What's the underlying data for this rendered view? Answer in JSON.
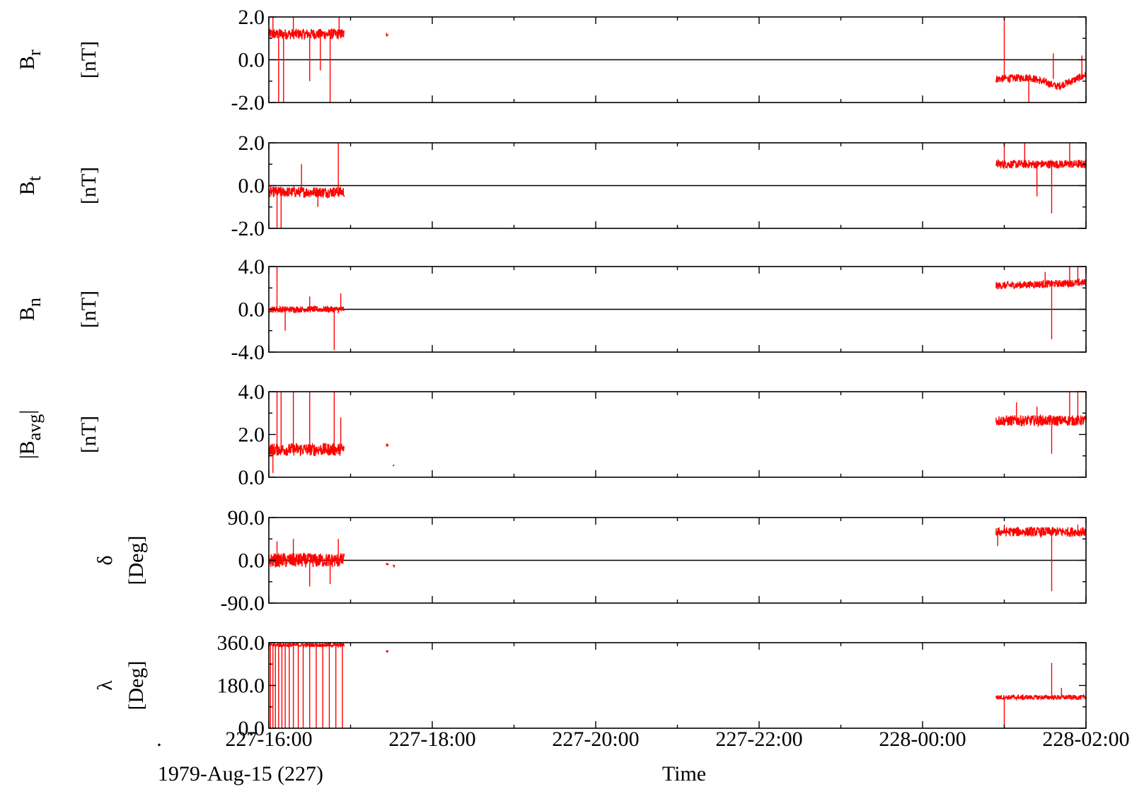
{
  "chart_data": {
    "type": "line",
    "date_label": "1979-Aug-15 (227)",
    "dot_label": ".",
    "xlabel": "Time",
    "x_tick_labels": [
      "227-16:00",
      "227-18:00",
      "227-20:00",
      "227-22:00",
      "228-00:00",
      "228-02:00"
    ],
    "x_range_hours": [
      0,
      10
    ],
    "colors": {
      "trace": "#ff0000",
      "axes": "#000000",
      "background": "#ffffff"
    },
    "panels": [
      {
        "id": "br",
        "ylabel_symbol": "B",
        "ylabel_sub": "r",
        "unit": "[nT]",
        "ylim": [
          -2,
          2
        ],
        "y_ticks": [
          -2,
          0,
          2
        ],
        "y_tick_labels": [
          "-2.0",
          "0.0",
          "2.0"
        ],
        "zero_line": true,
        "segments": [
          {
            "start": 0.0,
            "end": 0.92,
            "base": 1.2,
            "noise": 0.25,
            "spikes": [
              [
                0.05,
                2.0
              ],
              [
                0.12,
                -2.0
              ],
              [
                0.18,
                -2.0
              ],
              [
                0.3,
                2.0
              ],
              [
                0.5,
                -1.0
              ],
              [
                0.63,
                -0.5
              ],
              [
                0.75,
                -2.0
              ],
              [
                0.86,
                2.0
              ]
            ]
          },
          {
            "start": 1.44,
            "end": 1.46,
            "base": 1.2,
            "noise": 0.1,
            "spikes": []
          },
          {
            "start": 8.9,
            "end": 10.0,
            "base": -0.9,
            "base_end": -0.7,
            "dip": [
              9.65,
              -1.25
            ],
            "noise": 0.18,
            "spikes": [
              [
                9.0,
                2.0
              ],
              [
                9.6,
                0.3
              ],
              [
                9.95,
                0.2
              ],
              [
                9.3,
                -2.0
              ]
            ]
          }
        ]
      },
      {
        "id": "bt",
        "ylabel_symbol": "B",
        "ylabel_sub": "t",
        "unit": "[nT]",
        "ylim": [
          -2,
          2
        ],
        "y_ticks": [
          -2,
          0,
          2
        ],
        "y_tick_labels": [
          "-2.0",
          "0.0",
          "2.0"
        ],
        "zero_line": true,
        "segments": [
          {
            "start": 0.0,
            "end": 0.92,
            "base": -0.3,
            "noise": 0.25,
            "spikes": [
              [
                0.1,
                -2.0
              ],
              [
                0.15,
                -2.0
              ],
              [
                0.4,
                1.0
              ],
              [
                0.85,
                2.0
              ],
              [
                0.6,
                -1.0
              ]
            ]
          },
          {
            "start": 8.9,
            "end": 10.0,
            "base": 1.0,
            "noise": 0.2,
            "spikes": [
              [
                9.0,
                2.0
              ],
              [
                9.25,
                2.0
              ],
              [
                9.58,
                -1.3
              ],
              [
                9.8,
                2.0
              ],
              [
                9.4,
                -0.5
              ]
            ]
          }
        ]
      },
      {
        "id": "bn",
        "ylabel_symbol": "B",
        "ylabel_sub": "n",
        "unit": "[nT]",
        "ylim": [
          -4,
          4
        ],
        "y_ticks": [
          -4,
          0,
          4
        ],
        "y_tick_labels": [
          "-4.0",
          "0.0",
          "4.0"
        ],
        "zero_line": true,
        "segments": [
          {
            "start": 0.0,
            "end": 0.92,
            "base": 0.0,
            "noise": 0.3,
            "spikes": [
              [
                0.1,
                4.0
              ],
              [
                0.2,
                -2.0
              ],
              [
                0.8,
                -3.8
              ],
              [
                0.5,
                1.2
              ],
              [
                0.88,
                1.5
              ]
            ]
          },
          {
            "start": 8.9,
            "end": 10.0,
            "base": 2.2,
            "base_end": 2.5,
            "noise": 0.35,
            "spikes": [
              [
                9.58,
                -2.8
              ],
              [
                9.8,
                4.0
              ],
              [
                9.9,
                4.0
              ],
              [
                9.5,
                3.5
              ]
            ]
          }
        ]
      },
      {
        "id": "bavg",
        "ylabel_symbol": "|B",
        "ylabel_sub": "avg",
        "ylabel_suffix": "|",
        "unit": "[nT]",
        "ylim": [
          0,
          4
        ],
        "y_ticks": [
          0,
          2,
          4
        ],
        "y_tick_labels": [
          "0.0",
          "2.0",
          "4.0"
        ],
        "zero_line": false,
        "segments": [
          {
            "start": 0.0,
            "end": 0.92,
            "base": 1.3,
            "noise": 0.3,
            "spikes": [
              [
                0.05,
                0.2
              ],
              [
                0.1,
                4.0
              ],
              [
                0.15,
                4.0
              ],
              [
                0.3,
                4.0
              ],
              [
                0.5,
                4.0
              ],
              [
                0.8,
                4.0
              ],
              [
                0.88,
                2.8
              ]
            ]
          },
          {
            "start": 1.44,
            "end": 1.46,
            "base": 1.5,
            "noise": 0.1,
            "spikes": []
          },
          {
            "start": 1.52,
            "end": 1.53,
            "base": 0.55,
            "noise": 0.03,
            "spikes": []
          },
          {
            "start": 8.9,
            "end": 10.0,
            "base": 2.65,
            "noise": 0.25,
            "spikes": [
              [
                9.15,
                3.5
              ],
              [
                9.58,
                1.1
              ],
              [
                9.8,
                4.0
              ],
              [
                9.9,
                4.0
              ],
              [
                9.4,
                3.3
              ]
            ]
          }
        ]
      },
      {
        "id": "delta",
        "ylabel_symbol": "δ",
        "ylabel_sub": "",
        "unit": "[Deg]",
        "ylim": [
          -90,
          90
        ],
        "y_ticks": [
          -90,
          0,
          90
        ],
        "y_tick_labels": [
          "-90.0",
          "0.0",
          "90.0"
        ],
        "zero_line": true,
        "segments": [
          {
            "start": 0.0,
            "end": 0.92,
            "base": 0.0,
            "noise": 15,
            "spikes": [
              [
                0.3,
                45
              ],
              [
                0.5,
                -55
              ],
              [
                0.75,
                -50
              ],
              [
                0.85,
                45
              ],
              [
                0.1,
                40
              ]
            ]
          },
          {
            "start": 1.44,
            "end": 1.46,
            "base": -8,
            "noise": 2,
            "spikes": []
          },
          {
            "start": 1.52,
            "end": 1.54,
            "base": -12,
            "noise": 2,
            "spikes": []
          },
          {
            "start": 8.9,
            "end": 10.0,
            "base": 60,
            "noise": 10,
            "spikes": [
              [
                9.0,
                75
              ],
              [
                9.58,
                -65
              ],
              [
                9.9,
                75
              ],
              [
                8.92,
                30
              ]
            ]
          }
        ]
      },
      {
        "id": "lambda",
        "ylabel_symbol": "λ",
        "ylabel_sub": "",
        "unit": "[Deg]",
        "ylim": [
          0,
          360
        ],
        "y_ticks": [
          0,
          180,
          360
        ],
        "y_tick_labels": [
          "0.0",
          "180.0",
          "360.0"
        ],
        "zero_line": false,
        "segments": [
          {
            "start": 0.0,
            "end": 0.92,
            "base": 350,
            "noise": 8,
            "spikes": [
              [
                0.02,
                0
              ],
              [
                0.05,
                0
              ],
              [
                0.08,
                0
              ],
              [
                0.12,
                0
              ],
              [
                0.16,
                0
              ],
              [
                0.2,
                0
              ],
              [
                0.25,
                0
              ],
              [
                0.3,
                0
              ],
              [
                0.36,
                0
              ],
              [
                0.42,
                0
              ],
              [
                0.5,
                0
              ],
              [
                0.58,
                0
              ],
              [
                0.66,
                0
              ],
              [
                0.74,
                0
              ],
              [
                0.82,
                0
              ],
              [
                0.9,
                0
              ]
            ]
          },
          {
            "start": 1.44,
            "end": 1.46,
            "base": 325,
            "noise": 5,
            "spikes": []
          },
          {
            "start": 8.9,
            "end": 10.0,
            "base": 130,
            "noise": 10,
            "spikes": [
              [
                9.58,
                275
              ],
              [
                9.0,
                0
              ],
              [
                9.7,
                170
              ]
            ]
          }
        ]
      }
    ]
  }
}
